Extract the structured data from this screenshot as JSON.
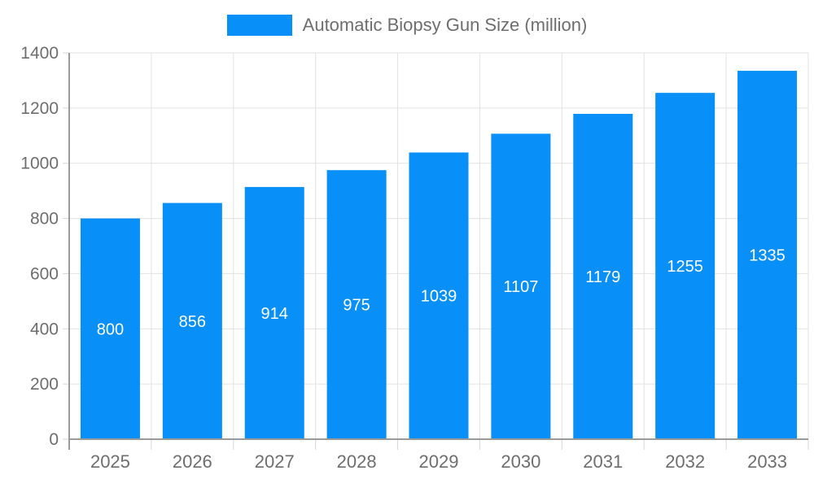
{
  "legend": {
    "label": "Automatic Biopsy Gun Size (million)"
  },
  "chart_data": {
    "type": "bar",
    "title": "Automatic Biopsy Gun Size (million)",
    "categories": [
      "2025",
      "2026",
      "2027",
      "2028",
      "2029",
      "2030",
      "2031",
      "2032",
      "2033"
    ],
    "values": [
      800,
      856,
      914,
      975,
      1039,
      1107,
      1179,
      1255,
      1335
    ],
    "xlabel": "",
    "ylabel": "",
    "ylim": [
      0,
      1400
    ],
    "ytick_step": 200,
    "grid": true,
    "legend_position": "top-center",
    "bar_color": "#0890f8",
    "value_label_color": "#ffffff",
    "axis_text_color": "#6e6e6e",
    "grid_color": "#e2e2e2",
    "tick_color": "#d6d6d6",
    "axis_line_color": "#9a9a9a"
  }
}
